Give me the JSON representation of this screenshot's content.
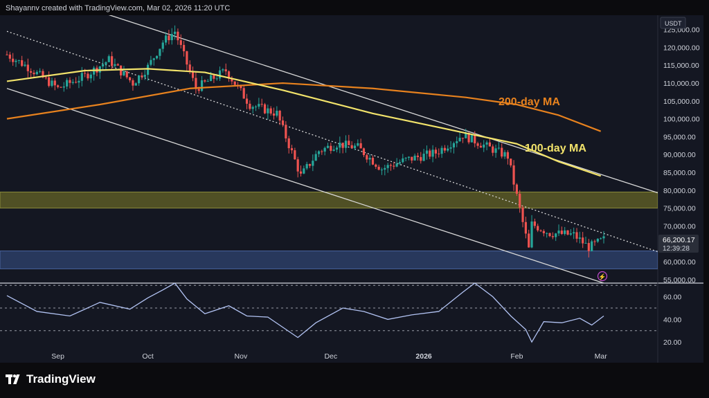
{
  "header": {
    "credit": "Shayannv created with TradingView.com, Mar 02, 2026 11:20 UTC"
  },
  "brand": {
    "name": "TradingView"
  },
  "colors": {
    "background": "#0b0b0e",
    "panel": "#141722",
    "up": "#26a69a",
    "down": "#ef5350",
    "ma200": "#e8821e",
    "ma100": "#f2e36b",
    "rsi": "#b2c3f3",
    "resistance_zone": "#5a5a26",
    "support_zone": "#2c3e66",
    "channel": "#d9d9d9"
  },
  "price_axis": {
    "currency": "USDT",
    "ticks": [
      "125,000.00",
      "120,000.00",
      "115,000.00",
      "110,000.00",
      "105,000.00",
      "100,000.00",
      "95,000.00",
      "90,000.00",
      "85,000.00",
      "80,000.00",
      "75,000.00",
      "70,000.00",
      "65,000.00",
      "60,000.00",
      "55,000.00"
    ],
    "last_price": "66,200.17",
    "countdown": "12:39:28"
  },
  "time_axis": {
    "labels": [
      "Sep",
      "Oct",
      "Nov",
      "Dec",
      "2026",
      "Feb",
      "Mar"
    ]
  },
  "annotations": {
    "ma200_label": "200-day MA",
    "ma100_label": "100-day MA"
  },
  "rsi_axis": {
    "ticks": [
      "60.00",
      "40.00",
      "20.00"
    ]
  },
  "chart_data": [
    {
      "type": "candlestick",
      "xlabel": "",
      "ylabel": "",
      "ylim": [
        54000,
        129000
      ],
      "x_labels": [
        "Sep",
        "Oct",
        "Nov",
        "Dec",
        "2026",
        "Feb",
        "Mar"
      ],
      "series": [
        {
          "name": "price_close_keypoints",
          "x": [
            "2025-08-15",
            "2025-08-22",
            "2025-09-01",
            "2025-09-10",
            "2025-09-18",
            "2025-09-26",
            "2025-10-01",
            "2025-10-06",
            "2025-10-10",
            "2025-10-17",
            "2025-10-27",
            "2025-11-04",
            "2025-11-13",
            "2025-11-21",
            "2025-11-27",
            "2025-12-03",
            "2025-12-10",
            "2025-12-18",
            "2025-12-26",
            "2026-01-05",
            "2026-01-14",
            "2026-01-20",
            "2026-01-29",
            "2026-02-05",
            "2026-02-06",
            "2026-02-12",
            "2026-02-20",
            "2026-02-25",
            "2026-03-02"
          ],
          "values": [
            118000,
            114500,
            108500,
            112000,
            116500,
            110000,
            114500,
            121500,
            124500,
            108500,
            113500,
            104000,
            101500,
            84000,
            91000,
            93000,
            92000,
            86000,
            88500,
            90500,
            95500,
            93000,
            89500,
            63500,
            70500,
            68000,
            67500,
            64000,
            66200
          ]
        },
        {
          "name": "200-day MA",
          "x": [
            "2025-08-15",
            "2025-09-15",
            "2025-10-15",
            "2025-11-15",
            "2025-12-15",
            "2026-01-15",
            "2026-02-01",
            "2026-02-15",
            "2026-03-01"
          ],
          "values": [
            100000,
            104000,
            108500,
            110000,
            108500,
            106000,
            104000,
            101000,
            96500
          ]
        },
        {
          "name": "100-day MA",
          "x": [
            "2025-08-15",
            "2025-09-10",
            "2025-10-01",
            "2025-10-20",
            "2025-11-15",
            "2025-12-15",
            "2026-01-15",
            "2026-02-01",
            "2026-02-15",
            "2026-03-01"
          ],
          "values": [
            110500,
            113500,
            114000,
            113000,
            108000,
            101500,
            96000,
            93000,
            88000,
            84000
          ]
        }
      ],
      "zones": [
        {
          "name": "resistance",
          "from": 75000,
          "to": 79500
        },
        {
          "name": "support",
          "from": 58000,
          "to": 63000
        }
      ],
      "channel": {
        "upper": {
          "x": [
            "2025-08-31",
            "2026-03-21"
          ],
          "y": [
            134000,
            79000
          ]
        },
        "lower": {
          "x": [
            "2025-08-15",
            "2026-03-02"
          ],
          "y": [
            108500,
            54000
          ]
        },
        "mid_dotted": {
          "x": [
            "2025-08-15",
            "2026-03-21"
          ],
          "y": [
            124500,
            62500
          ]
        }
      },
      "last_price": 66200.17
    },
    {
      "type": "line",
      "xlabel": "",
      "ylabel": "",
      "ylim": [
        14,
        72
      ],
      "levels": [
        70,
        50,
        30
      ],
      "series": [
        {
          "name": "RSI",
          "x": [
            "2025-08-15",
            "2025-08-25",
            "2025-09-05",
            "2025-09-15",
            "2025-09-25",
            "2025-10-01",
            "2025-10-06",
            "2025-10-10",
            "2025-10-14",
            "2025-10-20",
            "2025-10-28",
            "2025-11-03",
            "2025-11-10",
            "2025-11-20",
            "2025-11-26",
            "2025-12-05",
            "2025-12-12",
            "2025-12-20",
            "2025-12-28",
            "2026-01-06",
            "2026-01-14",
            "2026-01-18",
            "2026-01-24",
            "2026-01-30",
            "2026-02-04",
            "2026-02-06",
            "2026-02-10",
            "2026-02-16",
            "2026-02-22",
            "2026-02-26",
            "2026-03-02"
          ],
          "values": [
            61,
            47,
            43,
            55,
            49,
            59,
            66,
            72,
            58,
            45,
            52,
            43,
            42,
            24,
            37,
            50,
            47,
            40,
            44,
            47,
            64,
            72,
            60,
            43,
            31,
            20,
            38,
            37,
            41,
            35,
            43
          ]
        }
      ]
    }
  ]
}
